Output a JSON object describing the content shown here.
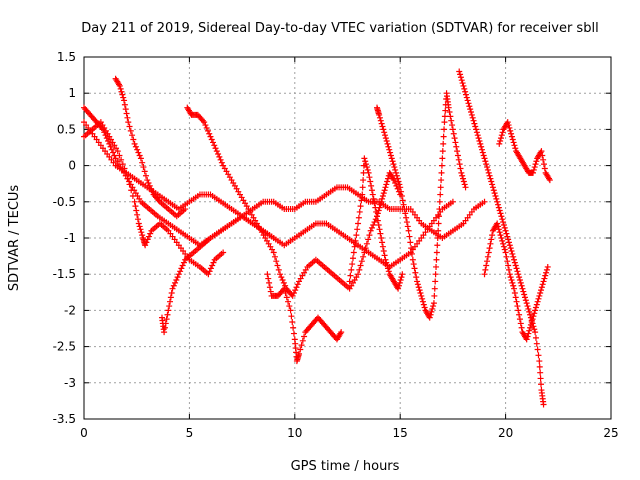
{
  "chart_data": {
    "type": "scatter",
    "title": "Day 211 of 2019, Sidereal Day-to-day VTEC variation (SDTVAR) for receiver sbll",
    "xlabel": "GPS time / hours",
    "ylabel": "SDTVAR / TECUs",
    "xlim": [
      0,
      25
    ],
    "ylim": [
      -3.5,
      1.5
    ],
    "xticks": [
      "0",
      "5",
      "10",
      "15",
      "20",
      "25"
    ],
    "yticks": [
      "1.5",
      "1",
      "0.5",
      "0",
      "-0.5",
      "-1",
      "-1.5",
      "-2",
      "-2.5",
      "-3",
      "-3.5"
    ],
    "grid": true,
    "marker": "plus",
    "color": "#ff0000",
    "series": [
      {
        "points": [
          [
            0.0,
            0.8
          ],
          [
            0.3,
            0.7
          ],
          [
            0.6,
            0.6
          ],
          [
            0.9,
            0.5
          ],
          [
            1.2,
            0.3
          ],
          [
            1.5,
            0.1
          ],
          [
            1.9,
            -0.1
          ],
          [
            2.3,
            -0.3
          ],
          [
            2.7,
            -0.5
          ],
          [
            3.1,
            -0.6
          ],
          [
            3.5,
            -0.7
          ],
          [
            4.0,
            -0.8
          ],
          [
            4.5,
            -0.9
          ],
          [
            5.0,
            -1.0
          ],
          [
            5.5,
            -1.1
          ],
          [
            6.0,
            -1.0
          ],
          [
            6.5,
            -0.9
          ],
          [
            7.0,
            -0.8
          ],
          [
            7.5,
            -0.7
          ],
          [
            8.0,
            -0.6
          ],
          [
            8.5,
            -0.5
          ],
          [
            9.0,
            -0.5
          ],
          [
            9.5,
            -0.6
          ],
          [
            10.0,
            -0.6
          ],
          [
            10.5,
            -0.5
          ],
          [
            11.0,
            -0.5
          ],
          [
            11.5,
            -0.4
          ],
          [
            12.0,
            -0.3
          ],
          [
            12.5,
            -0.3
          ],
          [
            13.0,
            -0.4
          ],
          [
            13.5,
            -0.5
          ],
          [
            14.0,
            -0.5
          ],
          [
            14.5,
            -0.6
          ],
          [
            15.0,
            -0.6
          ],
          [
            15.5,
            -0.6
          ],
          [
            16.0,
            -0.8
          ],
          [
            16.5,
            -0.9
          ],
          [
            17.0,
            -1.0
          ],
          [
            17.5,
            -0.9
          ],
          [
            18.0,
            -0.8
          ],
          [
            18.5,
            -0.6
          ],
          [
            19.0,
            -0.5
          ]
        ]
      },
      {
        "points": [
          [
            0.0,
            0.6
          ],
          [
            0.5,
            0.4
          ],
          [
            1.0,
            0.2
          ],
          [
            1.5,
            0.0
          ],
          [
            2.0,
            -0.1
          ],
          [
            2.5,
            -0.2
          ],
          [
            3.0,
            -0.3
          ],
          [
            3.5,
            -0.4
          ],
          [
            4.0,
            -0.5
          ],
          [
            4.5,
            -0.6
          ],
          [
            5.0,
            -0.5
          ],
          [
            5.5,
            -0.4
          ],
          [
            6.0,
            -0.4
          ],
          [
            6.5,
            -0.5
          ],
          [
            7.0,
            -0.6
          ],
          [
            7.5,
            -0.7
          ],
          [
            8.0,
            -0.8
          ],
          [
            8.5,
            -0.9
          ],
          [
            9.0,
            -1.0
          ],
          [
            9.5,
            -1.1
          ],
          [
            10.0,
            -1.0
          ],
          [
            10.5,
            -0.9
          ],
          [
            11.0,
            -0.8
          ],
          [
            11.5,
            -0.8
          ],
          [
            12.0,
            -0.9
          ],
          [
            12.5,
            -1.0
          ],
          [
            13.0,
            -1.1
          ],
          [
            13.5,
            -1.2
          ],
          [
            14.0,
            -1.3
          ],
          [
            14.5,
            -1.4
          ],
          [
            15.0,
            -1.3
          ],
          [
            15.5,
            -1.2
          ],
          [
            16.0,
            -1.0
          ],
          [
            16.5,
            -0.8
          ],
          [
            17.0,
            -0.6
          ],
          [
            17.5,
            -0.5
          ]
        ]
      },
      {
        "points": [
          [
            0.0,
            0.4
          ],
          [
            0.4,
            0.5
          ],
          [
            0.8,
            0.6
          ],
          [
            1.2,
            0.4
          ],
          [
            1.6,
            0.2
          ],
          [
            2.0,
            -0.1
          ],
          [
            2.4,
            -0.5
          ],
          [
            2.6,
            -0.8
          ],
          [
            2.8,
            -1.0
          ],
          [
            2.9,
            -1.1
          ],
          [
            3.2,
            -0.9
          ],
          [
            3.6,
            -0.8
          ],
          [
            4.0,
            -0.9
          ],
          [
            4.5,
            -1.1
          ],
          [
            5.0,
            -1.3
          ],
          [
            5.5,
            -1.4
          ],
          [
            5.9,
            -1.5
          ],
          [
            6.2,
            -1.3
          ],
          [
            6.6,
            -1.2
          ]
        ]
      },
      {
        "points": [
          [
            1.5,
            1.2
          ],
          [
            1.7,
            1.1
          ],
          [
            1.9,
            0.9
          ],
          [
            2.1,
            0.6
          ],
          [
            2.4,
            0.3
          ],
          [
            2.7,
            0.1
          ],
          [
            3.0,
            -0.2
          ],
          [
            3.3,
            -0.4
          ],
          [
            3.6,
            -0.5
          ],
          [
            4.0,
            -0.6
          ],
          [
            4.4,
            -0.7
          ],
          [
            4.8,
            -0.6
          ]
        ]
      },
      {
        "points": [
          [
            3.7,
            -2.1
          ],
          [
            3.8,
            -2.3
          ],
          [
            4.0,
            -2.0
          ],
          [
            4.2,
            -1.7
          ],
          [
            4.5,
            -1.5
          ],
          [
            4.8,
            -1.3
          ],
          [
            5.2,
            -1.2
          ],
          [
            5.6,
            -1.1
          ],
          [
            6.0,
            -1.0
          ],
          [
            6.5,
            -0.9
          ],
          [
            7.0,
            -0.8
          ],
          [
            7.5,
            -0.7
          ],
          [
            8.0,
            -0.8
          ],
          [
            8.5,
            -0.9
          ],
          [
            9.0,
            -1.0
          ]
        ]
      },
      {
        "points": [
          [
            4.9,
            0.8
          ],
          [
            5.1,
            0.7
          ],
          [
            5.4,
            0.7
          ],
          [
            5.7,
            0.6
          ],
          [
            6.0,
            0.4
          ],
          [
            6.3,
            0.2
          ],
          [
            6.6,
            0.0
          ],
          [
            7.0,
            -0.2
          ],
          [
            7.4,
            -0.4
          ],
          [
            7.8,
            -0.6
          ],
          [
            8.2,
            -0.8
          ],
          [
            8.6,
            -1.0
          ],
          [
            9.0,
            -1.2
          ],
          [
            9.3,
            -1.5
          ],
          [
            9.6,
            -1.7
          ],
          [
            9.9,
            -1.8
          ],
          [
            10.2,
            -1.6
          ],
          [
            10.6,
            -1.4
          ],
          [
            11.0,
            -1.3
          ],
          [
            11.4,
            -1.4
          ],
          [
            11.8,
            -1.5
          ],
          [
            12.2,
            -1.6
          ],
          [
            12.6,
            -1.7
          ],
          [
            13.0,
            -1.5
          ],
          [
            13.3,
            -1.2
          ],
          [
            13.6,
            -0.9
          ],
          [
            13.9,
            -0.7
          ],
          [
            14.1,
            -0.5
          ],
          [
            14.3,
            -0.3
          ],
          [
            14.5,
            -0.1
          ],
          [
            14.7,
            -0.2
          ],
          [
            15.0,
            -0.4
          ]
        ]
      },
      {
        "points": [
          [
            8.7,
            -1.5
          ],
          [
            8.9,
            -1.8
          ],
          [
            9.2,
            -1.8
          ],
          [
            9.5,
            -1.7
          ],
          [
            9.8,
            -2.0
          ],
          [
            10.0,
            -2.4
          ],
          [
            10.1,
            -2.7
          ],
          [
            10.2,
            -2.6
          ],
          [
            10.5,
            -2.3
          ],
          [
            10.8,
            -2.2
          ],
          [
            11.1,
            -2.1
          ],
          [
            11.4,
            -2.2
          ],
          [
            11.7,
            -2.3
          ],
          [
            12.0,
            -2.4
          ],
          [
            12.2,
            -2.3
          ]
        ]
      },
      {
        "points": [
          [
            12.6,
            -1.6
          ],
          [
            12.8,
            -1.2
          ],
          [
            13.0,
            -0.8
          ],
          [
            13.2,
            -0.4
          ],
          [
            13.3,
            0.1
          ],
          [
            13.5,
            -0.1
          ],
          [
            13.7,
            -0.4
          ],
          [
            13.9,
            -0.7
          ],
          [
            14.1,
            -1.0
          ],
          [
            14.3,
            -1.3
          ],
          [
            14.5,
            -1.5
          ],
          [
            14.7,
            -1.6
          ],
          [
            14.9,
            -1.7
          ],
          [
            15.1,
            -1.5
          ]
        ]
      },
      {
        "points": [
          [
            13.9,
            0.8
          ],
          [
            14.0,
            0.7
          ],
          [
            14.2,
            0.5
          ],
          [
            14.4,
            0.3
          ],
          [
            14.6,
            0.1
          ],
          [
            14.8,
            -0.1
          ],
          [
            15.0,
            -0.3
          ],
          [
            15.2,
            -0.6
          ],
          [
            15.4,
            -0.9
          ],
          [
            15.6,
            -1.3
          ],
          [
            15.8,
            -1.6
          ],
          [
            16.0,
            -1.8
          ],
          [
            16.2,
            -2.0
          ],
          [
            16.4,
            -2.1
          ],
          [
            16.6,
            -1.9
          ],
          [
            16.7,
            -1.4
          ],
          [
            16.8,
            -0.9
          ],
          [
            16.9,
            -0.4
          ],
          [
            17.0,
            0.1
          ],
          [
            17.1,
            0.6
          ],
          [
            17.2,
            1.0
          ],
          [
            17.3,
            0.8
          ],
          [
            17.5,
            0.5
          ],
          [
            17.7,
            0.2
          ],
          [
            17.9,
            -0.1
          ],
          [
            18.1,
            -0.3
          ]
        ]
      },
      {
        "points": [
          [
            17.8,
            1.3
          ],
          [
            18.0,
            1.1
          ],
          [
            18.2,
            0.9
          ],
          [
            18.4,
            0.7
          ],
          [
            18.6,
            0.5
          ],
          [
            18.8,
            0.3
          ],
          [
            19.0,
            0.1
          ],
          [
            19.2,
            -0.1
          ],
          [
            19.4,
            -0.3
          ],
          [
            19.6,
            -0.5
          ],
          [
            19.8,
            -0.7
          ],
          [
            20.0,
            -0.9
          ],
          [
            20.2,
            -1.1
          ],
          [
            20.4,
            -1.3
          ],
          [
            20.6,
            -1.5
          ],
          [
            20.8,
            -1.7
          ],
          [
            21.0,
            -1.9
          ],
          [
            21.2,
            -2.1
          ],
          [
            21.4,
            -2.3
          ],
          [
            21.6,
            -2.7
          ],
          [
            21.7,
            -3.1
          ],
          [
            21.8,
            -3.3
          ]
        ]
      },
      {
        "points": [
          [
            19.7,
            0.3
          ],
          [
            19.9,
            0.5
          ],
          [
            20.1,
            0.6
          ],
          [
            20.3,
            0.4
          ],
          [
            20.5,
            0.2
          ],
          [
            20.7,
            0.1
          ],
          [
            20.9,
            0.0
          ],
          [
            21.1,
            -0.1
          ],
          [
            21.3,
            -0.1
          ],
          [
            21.5,
            0.1
          ],
          [
            21.7,
            0.2
          ],
          [
            21.9,
            -0.1
          ],
          [
            22.1,
            -0.2
          ]
        ]
      },
      {
        "points": [
          [
            19.0,
            -1.5
          ],
          [
            19.2,
            -1.2
          ],
          [
            19.4,
            -0.9
          ],
          [
            19.6,
            -0.8
          ],
          [
            19.8,
            -1.0
          ],
          [
            20.0,
            -1.2
          ],
          [
            20.2,
            -1.5
          ],
          [
            20.4,
            -1.7
          ],
          [
            20.6,
            -2.0
          ],
          [
            20.8,
            -2.3
          ],
          [
            21.0,
            -2.4
          ],
          [
            21.2,
            -2.2
          ],
          [
            21.4,
            -2.0
          ],
          [
            21.6,
            -1.8
          ],
          [
            21.8,
            -1.6
          ],
          [
            22.0,
            -1.4
          ]
        ]
      }
    ]
  }
}
